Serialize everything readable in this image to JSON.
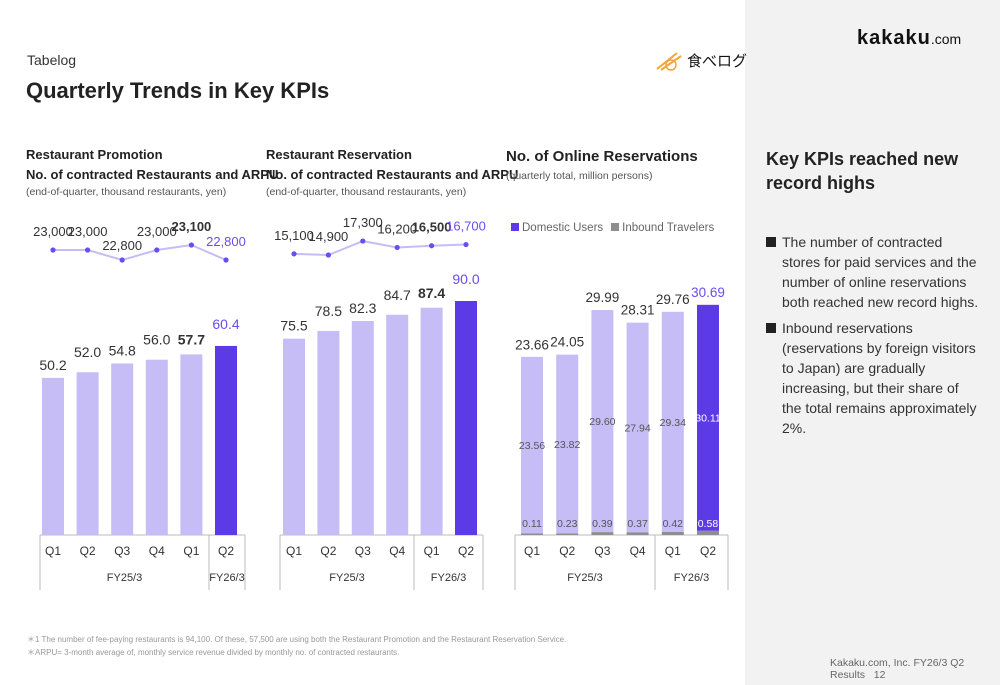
{
  "header": {
    "brand": "Tabelog",
    "title": "Quarterly Trends in Key KPIs",
    "logo_tabelog": "食べログ",
    "logo_kakaku": "kakaku",
    "logo_kakaku_suffix": ".com"
  },
  "colors": {
    "bar": "#c6bcf6",
    "highlight": "#5c3ae6",
    "highlight_text": "#6a4cf0",
    "inbound": "#8e8e8e",
    "line": "#c6bcf6"
  },
  "sections": [
    {
      "heading": "Restaurant Promotion",
      "subheading": "No. of contracted Restaurants and ARPU",
      "note": "(end-of-quarter, thousand restaurants, yen)"
    },
    {
      "heading": "Restaurant Reservation",
      "subheading": "No. of contracted Restaurants and ARPU",
      "note": "(end-of-quarter, thousand restaurants, yen)"
    },
    {
      "heading": "No. of Online Reservations",
      "note": "(quarterly total, million persons)",
      "legend": [
        "Domestic Users",
        "Inbound Travelers"
      ]
    }
  ],
  "chart_data": [
    {
      "type": "bar",
      "title": "Restaurant Promotion",
      "categories": [
        "Q1",
        "Q2",
        "Q3",
        "Q4",
        "Q1",
        "Q2"
      ],
      "groups": [
        {
          "label": "FY25/3",
          "count": 4
        },
        {
          "label": "FY26/3",
          "count": 2
        }
      ],
      "values": [
        50.2,
        52.0,
        54.8,
        56.0,
        57.7,
        60.4
      ],
      "labels": [
        "50.2",
        "52.0",
        "54.8",
        "56.0",
        "57.7",
        "60.4"
      ],
      "line": {
        "name": "ARPU",
        "values": [
          23000,
          23000,
          22800,
          23000,
          23100,
          22800
        ],
        "labels": [
          "23,000",
          "23,000",
          "22,800",
          "23,000",
          "23,100",
          "22,800"
        ]
      }
    },
    {
      "type": "bar",
      "title": "Restaurant Reservation",
      "categories": [
        "Q1",
        "Q2",
        "Q3",
        "Q4",
        "Q1",
        "Q2"
      ],
      "groups": [
        {
          "label": "FY25/3",
          "count": 4
        },
        {
          "label": "FY26/3",
          "count": 2
        }
      ],
      "values": [
        75.5,
        78.5,
        82.3,
        84.7,
        87.4,
        90.0
      ],
      "labels": [
        "75.5",
        "78.5",
        "82.3",
        "84.7",
        "87.4",
        "90.0"
      ],
      "line": {
        "name": "ARPU",
        "values": [
          15100,
          14900,
          17300,
          16200,
          16500,
          16700
        ],
        "labels": [
          "15,100",
          "14,900",
          "17,300",
          "16,200",
          "16,500",
          "16,700"
        ]
      }
    },
    {
      "type": "bar",
      "stacked": true,
      "title": "No. of Online Reservations",
      "categories": [
        "Q1",
        "Q2",
        "Q3",
        "Q4",
        "Q1",
        "Q2"
      ],
      "groups": [
        {
          "label": "FY25/3",
          "count": 4
        },
        {
          "label": "FY26/3",
          "count": 2
        }
      ],
      "totals": [
        23.66,
        24.05,
        29.99,
        28.31,
        29.76,
        30.69
      ],
      "total_labels": [
        "23.66",
        "24.05",
        "29.99",
        "28.31",
        "29.76",
        "30.69"
      ],
      "series": [
        {
          "name": "Domestic Users",
          "values": [
            23.56,
            23.82,
            29.6,
            27.94,
            29.34,
            30.11
          ],
          "labels": [
            "23.56",
            "23.82",
            "29.60",
            "27.94",
            "29.34",
            "30.11"
          ]
        },
        {
          "name": "Inbound Travelers",
          "values": [
            0.11,
            0.23,
            0.39,
            0.37,
            0.42,
            0.58
          ],
          "labels": [
            "0.11",
            "0.23",
            "0.39",
            "0.37",
            "0.42",
            "0.58"
          ]
        }
      ]
    }
  ],
  "side": {
    "title": "Key KPIs reached new record highs",
    "bullets": [
      "The number of contracted stores for paid services and the number of online reservations both reached new record highs.",
      "Inbound reservations (reservations by foreign visitors to Japan) are gradually increasing, but their share of the total remains approximately 2%."
    ]
  },
  "footnotes": [
    "＊1 The number of fee-paying restaurants is 94,100. Of these, 57,500 are using both the Restaurant Promotion and the Restaurant Reservation Service.",
    "＊ARPU= 3-month average of, monthly service revenue divided by monthly no. of contracted restaurants."
  ],
  "footer": {
    "company": "Kakaku.com, Inc. FY26/3 Q2 Results",
    "page": "12"
  }
}
